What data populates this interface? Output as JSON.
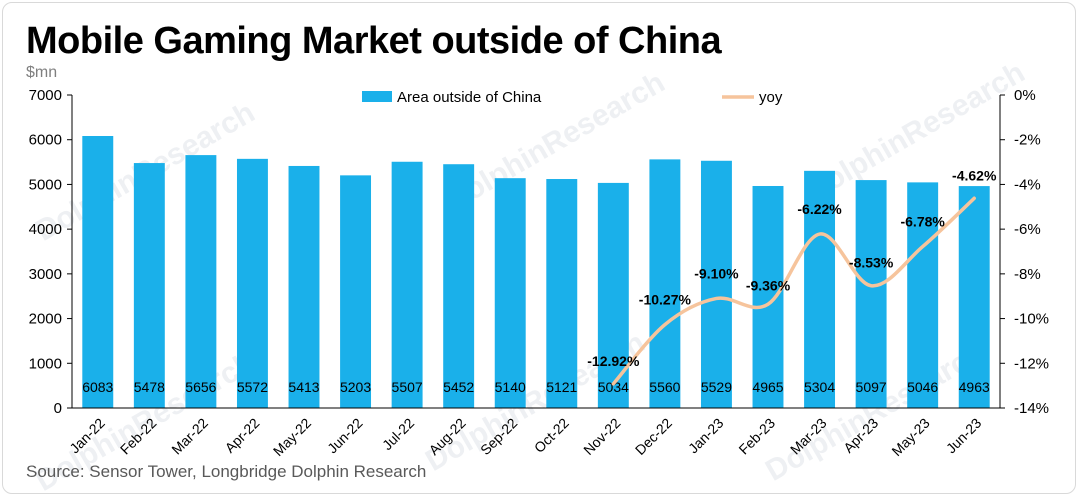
{
  "title": "Mobile Gaming Market outside of China",
  "source": "Source: Sensor Tower, Longbridge Dolphin Research",
  "watermark": "DolphinResearch",
  "colors": {
    "bar": "#1ab0ea",
    "line": "#f6c49c",
    "axis": "#000000"
  },
  "chart_data": {
    "type": "bar",
    "title": "Mobile Gaming Market outside of China",
    "ylabel": "$mn",
    "categories": [
      "Jan-22",
      "Feb-22",
      "Mar-22",
      "Apr-22",
      "May-22",
      "Jun-22",
      "Jul-22",
      "Aug-22",
      "Sep-22",
      "Oct-22",
      "Nov-22",
      "Dec-22",
      "Jan-23",
      "Feb-23",
      "Mar-23",
      "Apr-23",
      "May-23",
      "Jun-23"
    ],
    "series": [
      {
        "name": "Area outside of China",
        "type": "bar",
        "axis": "left",
        "values": [
          6083,
          5478,
          5656,
          5572,
          5413,
          5203,
          5507,
          5452,
          5140,
          5121,
          5034,
          5560,
          5529,
          4965,
          5304,
          5097,
          5046,
          4963
        ]
      },
      {
        "name": "yoy",
        "type": "line",
        "axis": "right",
        "values": [
          null,
          null,
          null,
          null,
          null,
          null,
          null,
          null,
          null,
          null,
          -12.92,
          -10.27,
          -9.1,
          -9.36,
          -6.22,
          -8.53,
          -6.78,
          -4.62
        ],
        "labels": [
          "",
          "",
          "",
          "",
          "",
          "",
          "",
          "",
          "",
          "",
          "-12.92%",
          "-10.27%",
          "-9.10%",
          "-9.36%",
          "-6.22%",
          "-8.53%",
          "-6.78%",
          "-4.62%"
        ]
      }
    ],
    "ylim": [
      0,
      7000
    ],
    "yticks": [
      0,
      1000,
      2000,
      3000,
      4000,
      5000,
      6000,
      7000
    ],
    "y2lim": [
      -14,
      0
    ],
    "y2ticks": [
      0,
      -2,
      -4,
      -6,
      -8,
      -10,
      -12,
      -14
    ],
    "y2ticklabels": [
      "0%",
      "-2%",
      "-4%",
      "-6%",
      "-8%",
      "-10%",
      "-12%",
      "-14%"
    ],
    "legend_position": "top"
  }
}
